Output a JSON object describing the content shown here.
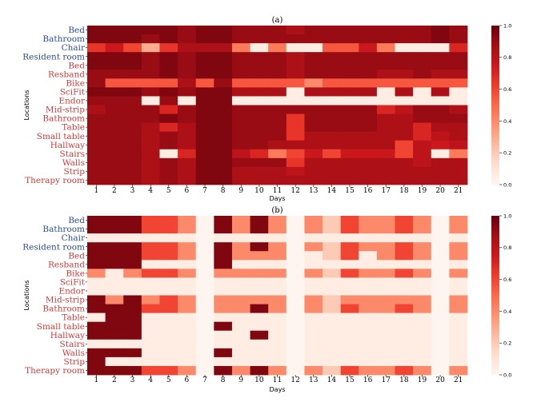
{
  "chart_data": [
    {
      "type": "heatmap",
      "title": "(a)",
      "xlabel": "Days",
      "ylabel": "Locations",
      "x": [
        "1",
        "2",
        "3",
        "4",
        "5",
        "6",
        "7",
        "8",
        "9",
        "10",
        "11",
        "12",
        "13",
        "14",
        "15",
        "16",
        "17",
        "18",
        "19",
        "20",
        "21"
      ],
      "rows": [
        {
          "label": "Bed",
          "group": "blue",
          "values": [
            0.95,
            0.95,
            0.95,
            0.95,
            0.95,
            0.9,
            0.95,
            0.95,
            0.9,
            0.9,
            0.9,
            0.85,
            0.9,
            0.9,
            0.9,
            0.9,
            0.9,
            0.9,
            0.9,
            0.95,
            0.9
          ]
        },
        {
          "label": "Bathroom",
          "group": "blue",
          "values": [
            0.95,
            0.95,
            0.95,
            0.9,
            0.95,
            0.9,
            0.95,
            0.95,
            0.9,
            0.9,
            0.9,
            0.9,
            0.9,
            0.9,
            0.9,
            0.9,
            0.9,
            0.9,
            0.9,
            0.95,
            0.9
          ]
        },
        {
          "label": "Chair",
          "group": "blue",
          "values": [
            0.65,
            0.75,
            0.6,
            0.3,
            0.65,
            0.85,
            0.85,
            0.85,
            0.45,
            0.05,
            0.45,
            0.05,
            0.05,
            0.55,
            0.55,
            0.75,
            0.45,
            0.05,
            0.05,
            0.05,
            0.7
          ]
        },
        {
          "label": "Resident room",
          "group": "blue",
          "values": [
            0.95,
            0.95,
            0.95,
            0.9,
            0.95,
            0.9,
            0.95,
            0.95,
            0.9,
            0.9,
            0.9,
            0.85,
            0.9,
            0.9,
            0.9,
            0.9,
            0.9,
            0.9,
            0.9,
            0.9,
            0.9
          ]
        },
        {
          "label": "Bed",
          "group": "red",
          "values": [
            0.95,
            0.95,
            0.95,
            0.9,
            0.95,
            0.9,
            0.95,
            0.95,
            0.9,
            0.9,
            0.9,
            0.85,
            0.9,
            0.9,
            0.9,
            0.9,
            0.9,
            0.9,
            0.9,
            0.9,
            0.9
          ]
        },
        {
          "label": "Resband",
          "group": "red",
          "values": [
            0.9,
            0.9,
            0.9,
            0.9,
            0.95,
            0.9,
            0.95,
            0.95,
            0.9,
            0.9,
            0.9,
            0.85,
            0.9,
            0.9,
            0.9,
            0.9,
            0.85,
            0.85,
            0.9,
            0.85,
            0.85
          ]
        },
        {
          "label": "Bike",
          "group": "red",
          "values": [
            0.9,
            0.55,
            0.55,
            0.55,
            0.55,
            0.85,
            0.55,
            0.9,
            0.55,
            0.55,
            0.55,
            0.55,
            0.4,
            0.55,
            0.55,
            0.55,
            0.55,
            0.55,
            0.55,
            0.55,
            0.55
          ]
        },
        {
          "label": "SciFit",
          "group": "red",
          "values": [
            0.95,
            0.95,
            0.95,
            0.9,
            0.95,
            0.9,
            0.95,
            0.95,
            0.85,
            0.85,
            0.85,
            0.05,
            0.85,
            0.85,
            0.85,
            0.85,
            0.05,
            0.85,
            0.05,
            0.85,
            0.05
          ]
        },
        {
          "label": "Endor",
          "group": "red",
          "values": [
            0.9,
            0.9,
            0.9,
            0.05,
            0.9,
            0.05,
            0.95,
            0.95,
            0.05,
            0.05,
            0.05,
            0.05,
            0.05,
            0.05,
            0.05,
            0.05,
            0.05,
            0.05,
            0.05,
            0.05,
            0.05
          ]
        },
        {
          "label": "Mid-strip",
          "group": "red",
          "values": [
            0.85,
            0.9,
            0.9,
            0.9,
            0.7,
            0.9,
            0.95,
            0.95,
            0.9,
            0.9,
            0.9,
            0.9,
            0.9,
            0.9,
            0.9,
            0.9,
            0.7,
            0.8,
            0.9,
            0.9,
            0.85
          ]
        },
        {
          "label": "Bathroom",
          "group": "red",
          "values": [
            0.9,
            0.9,
            0.9,
            0.9,
            0.95,
            0.9,
            0.95,
            0.95,
            0.9,
            0.9,
            0.9,
            0.65,
            0.9,
            0.9,
            0.9,
            0.9,
            0.85,
            0.85,
            0.9,
            0.9,
            0.9
          ]
        },
        {
          "label": "Table",
          "group": "red",
          "values": [
            0.9,
            0.9,
            0.9,
            0.85,
            0.7,
            0.85,
            0.95,
            0.95,
            0.9,
            0.9,
            0.9,
            0.65,
            0.9,
            0.9,
            0.9,
            0.9,
            0.85,
            0.85,
            0.7,
            0.85,
            0.85
          ]
        },
        {
          "label": "Small table",
          "group": "red",
          "values": [
            0.9,
            0.9,
            0.9,
            0.85,
            0.9,
            0.85,
            0.95,
            0.95,
            0.9,
            0.9,
            0.9,
            0.65,
            0.85,
            0.85,
            0.85,
            0.85,
            0.85,
            0.85,
            0.7,
            0.8,
            0.85
          ]
        },
        {
          "label": "Hallway",
          "group": "red",
          "values": [
            0.9,
            0.9,
            0.9,
            0.85,
            0.9,
            0.85,
            0.95,
            0.95,
            0.9,
            0.9,
            0.85,
            0.85,
            0.85,
            0.85,
            0.85,
            0.85,
            0.85,
            0.6,
            0.8,
            0.75,
            0.8
          ]
        },
        {
          "label": "Stairs",
          "group": "red",
          "values": [
            0.9,
            0.9,
            0.9,
            0.85,
            0.05,
            0.7,
            0.95,
            0.95,
            0.8,
            0.7,
            0.45,
            0.6,
            0.75,
            0.6,
            0.75,
            0.75,
            0.75,
            0.6,
            0.8,
            0.05,
            0.45
          ]
        },
        {
          "label": "Walls",
          "group": "red",
          "values": [
            0.9,
            0.9,
            0.9,
            0.85,
            0.9,
            0.85,
            0.95,
            0.95,
            0.9,
            0.9,
            0.9,
            0.65,
            0.85,
            0.85,
            0.85,
            0.85,
            0.85,
            0.85,
            0.8,
            0.85,
            0.85
          ]
        },
        {
          "label": "Strip",
          "group": "red",
          "values": [
            0.9,
            0.9,
            0.9,
            0.85,
            0.9,
            0.85,
            0.95,
            0.95,
            0.85,
            0.85,
            0.85,
            0.8,
            0.85,
            0.85,
            0.85,
            0.85,
            0.85,
            0.85,
            0.85,
            0.85,
            0.85
          ]
        },
        {
          "label": "Therapy room",
          "group": "red",
          "values": [
            0.9,
            0.9,
            0.9,
            0.85,
            0.9,
            0.85,
            0.95,
            0.95,
            0.85,
            0.85,
            0.85,
            0.85,
            0.85,
            0.85,
            0.85,
            0.85,
            0.85,
            0.85,
            0.85,
            0.85,
            0.85
          ]
        }
      ],
      "colorbar": {
        "min": 0.0,
        "max": 1.0,
        "ticks": [
          "0.0",
          "0.2",
          "0.4",
          "0.6",
          "0.8",
          "1.0"
        ]
      }
    },
    {
      "type": "heatmap",
      "title": "(b)",
      "xlabel": "Days",
      "ylabel": "Locations",
      "x": [
        "1",
        "2",
        "3",
        "4",
        "5",
        "6",
        "7",
        "8",
        "9",
        "10",
        "11",
        "12",
        "13",
        "14",
        "15",
        "16",
        "17",
        "18",
        "19",
        "20",
        "21"
      ],
      "rows": [
        {
          "label": "Bed",
          "group": "blue",
          "values": [
            0.95,
            0.95,
            0.95,
            0.6,
            0.6,
            0.4,
            0.0,
            0.95,
            0.4,
            0.95,
            0.4,
            0.0,
            0.4,
            0.2,
            0.6,
            0.4,
            0.4,
            0.6,
            0.4,
            0.0,
            0.4
          ]
        },
        {
          "label": "Bathroom",
          "group": "blue",
          "values": [
            0.95,
            0.95,
            0.95,
            0.6,
            0.6,
            0.4,
            0.0,
            0.95,
            0.4,
            0.95,
            0.4,
            0.0,
            0.4,
            0.2,
            0.6,
            0.4,
            0.4,
            0.6,
            0.4,
            0.0,
            0.4
          ]
        },
        {
          "label": "Chair",
          "group": "blue",
          "values": [
            0.05,
            0.05,
            0.05,
            0.05,
            0.05,
            0.05,
            0.0,
            0.05,
            0.05,
            0.05,
            0.05,
            0.0,
            0.05,
            0.05,
            0.05,
            0.05,
            0.05,
            0.05,
            0.05,
            0.0,
            0.05
          ]
        },
        {
          "label": "Resident room",
          "group": "blue",
          "values": [
            0.95,
            0.95,
            0.95,
            0.6,
            0.6,
            0.4,
            0.0,
            0.95,
            0.4,
            0.95,
            0.4,
            0.0,
            0.4,
            0.2,
            0.6,
            0.4,
            0.4,
            0.6,
            0.4,
            0.0,
            0.4
          ]
        },
        {
          "label": "Bed",
          "group": "red",
          "values": [
            0.95,
            0.95,
            0.95,
            0.6,
            0.6,
            0.4,
            0.0,
            0.95,
            0.4,
            0.4,
            0.4,
            0.0,
            0.05,
            0.2,
            0.6,
            0.05,
            0.4,
            0.6,
            0.4,
            0.0,
            0.4
          ]
        },
        {
          "label": "Resband",
          "group": "red",
          "values": [
            0.95,
            0.95,
            0.95,
            0.05,
            0.05,
            0.05,
            0.0,
            0.95,
            0.05,
            0.05,
            0.05,
            0.0,
            0.05,
            0.05,
            0.05,
            0.05,
            0.05,
            0.05,
            0.05,
            0.0,
            0.05
          ]
        },
        {
          "label": "Bike",
          "group": "red",
          "values": [
            0.4,
            0.05,
            0.4,
            0.6,
            0.6,
            0.4,
            0.0,
            0.4,
            0.4,
            0.4,
            0.4,
            0.0,
            0.4,
            0.2,
            0.6,
            0.4,
            0.4,
            0.6,
            0.4,
            0.0,
            0.4
          ]
        },
        {
          "label": "SciFit",
          "group": "red",
          "values": [
            0.05,
            0.05,
            0.05,
            0.05,
            0.05,
            0.05,
            0.0,
            0.05,
            0.05,
            0.05,
            0.05,
            0.0,
            0.05,
            0.05,
            0.05,
            0.05,
            0.05,
            0.05,
            0.05,
            0.0,
            0.05
          ]
        },
        {
          "label": "Endor",
          "group": "red",
          "values": [
            0.05,
            0.05,
            0.05,
            0.05,
            0.05,
            0.05,
            0.0,
            0.05,
            0.05,
            0.05,
            0.05,
            0.0,
            0.05,
            0.05,
            0.05,
            0.05,
            0.05,
            0.05,
            0.05,
            0.0,
            0.05
          ]
        },
        {
          "label": "Mid-strip",
          "group": "red",
          "values": [
            0.95,
            0.4,
            0.95,
            0.4,
            0.6,
            0.4,
            0.0,
            0.4,
            0.4,
            0.4,
            0.4,
            0.0,
            0.4,
            0.2,
            0.4,
            0.4,
            0.4,
            0.4,
            0.4,
            0.0,
            0.4
          ]
        },
        {
          "label": "Bathroom",
          "group": "red",
          "values": [
            0.95,
            0.95,
            0.95,
            0.6,
            0.6,
            0.4,
            0.0,
            0.4,
            0.4,
            0.95,
            0.4,
            0.0,
            0.4,
            0.2,
            0.6,
            0.4,
            0.4,
            0.6,
            0.4,
            0.0,
            0.4
          ]
        },
        {
          "label": "Table",
          "group": "red",
          "values": [
            0.05,
            0.95,
            0.95,
            0.05,
            0.05,
            0.05,
            0.0,
            0.05,
            0.05,
            0.05,
            0.05,
            0.0,
            0.05,
            0.05,
            0.05,
            0.05,
            0.05,
            0.05,
            0.05,
            0.0,
            0.05
          ]
        },
        {
          "label": "Small table",
          "group": "red",
          "values": [
            0.95,
            0.95,
            0.95,
            0.05,
            0.05,
            0.05,
            0.0,
            0.95,
            0.05,
            0.05,
            0.05,
            0.0,
            0.05,
            0.05,
            0.05,
            0.05,
            0.05,
            0.05,
            0.05,
            0.0,
            0.05
          ]
        },
        {
          "label": "Hallway",
          "group": "red",
          "values": [
            0.95,
            0.95,
            0.95,
            0.05,
            0.05,
            0.05,
            0.0,
            0.05,
            0.05,
            0.95,
            0.05,
            0.0,
            0.05,
            0.05,
            0.05,
            0.05,
            0.05,
            0.05,
            0.05,
            0.0,
            0.05
          ]
        },
        {
          "label": "Stairs",
          "group": "red",
          "values": [
            0.05,
            0.05,
            0.05,
            0.05,
            0.05,
            0.05,
            0.0,
            0.05,
            0.05,
            0.05,
            0.05,
            0.0,
            0.05,
            0.05,
            0.05,
            0.05,
            0.05,
            0.05,
            0.05,
            0.0,
            0.05
          ]
        },
        {
          "label": "Walls",
          "group": "red",
          "values": [
            0.95,
            0.95,
            0.95,
            0.05,
            0.05,
            0.05,
            0.0,
            0.95,
            0.05,
            0.05,
            0.05,
            0.0,
            0.05,
            0.05,
            0.05,
            0.05,
            0.05,
            0.05,
            0.05,
            0.0,
            0.05
          ]
        },
        {
          "label": "Strip",
          "group": "red",
          "values": [
            0.95,
            0.05,
            0.05,
            0.05,
            0.05,
            0.05,
            0.0,
            0.05,
            0.05,
            0.05,
            0.05,
            0.0,
            0.05,
            0.05,
            0.05,
            0.05,
            0.05,
            0.05,
            0.05,
            0.0,
            0.05
          ]
        },
        {
          "label": "Therapy room",
          "group": "red",
          "values": [
            0.95,
            0.95,
            0.95,
            0.6,
            0.6,
            0.4,
            0.0,
            0.95,
            0.4,
            0.95,
            0.4,
            0.0,
            0.4,
            0.2,
            0.6,
            0.4,
            0.4,
            0.6,
            0.4,
            0.0,
            0.4
          ]
        }
      ],
      "colorbar": {
        "min": 0.0,
        "max": 1.0,
        "ticks": [
          "0.0",
          "0.2",
          "0.4",
          "0.6",
          "0.8",
          "1.0"
        ]
      }
    }
  ],
  "colors": {
    "blue_label": "#2a4ea0",
    "red_label": "#d63a3a"
  }
}
